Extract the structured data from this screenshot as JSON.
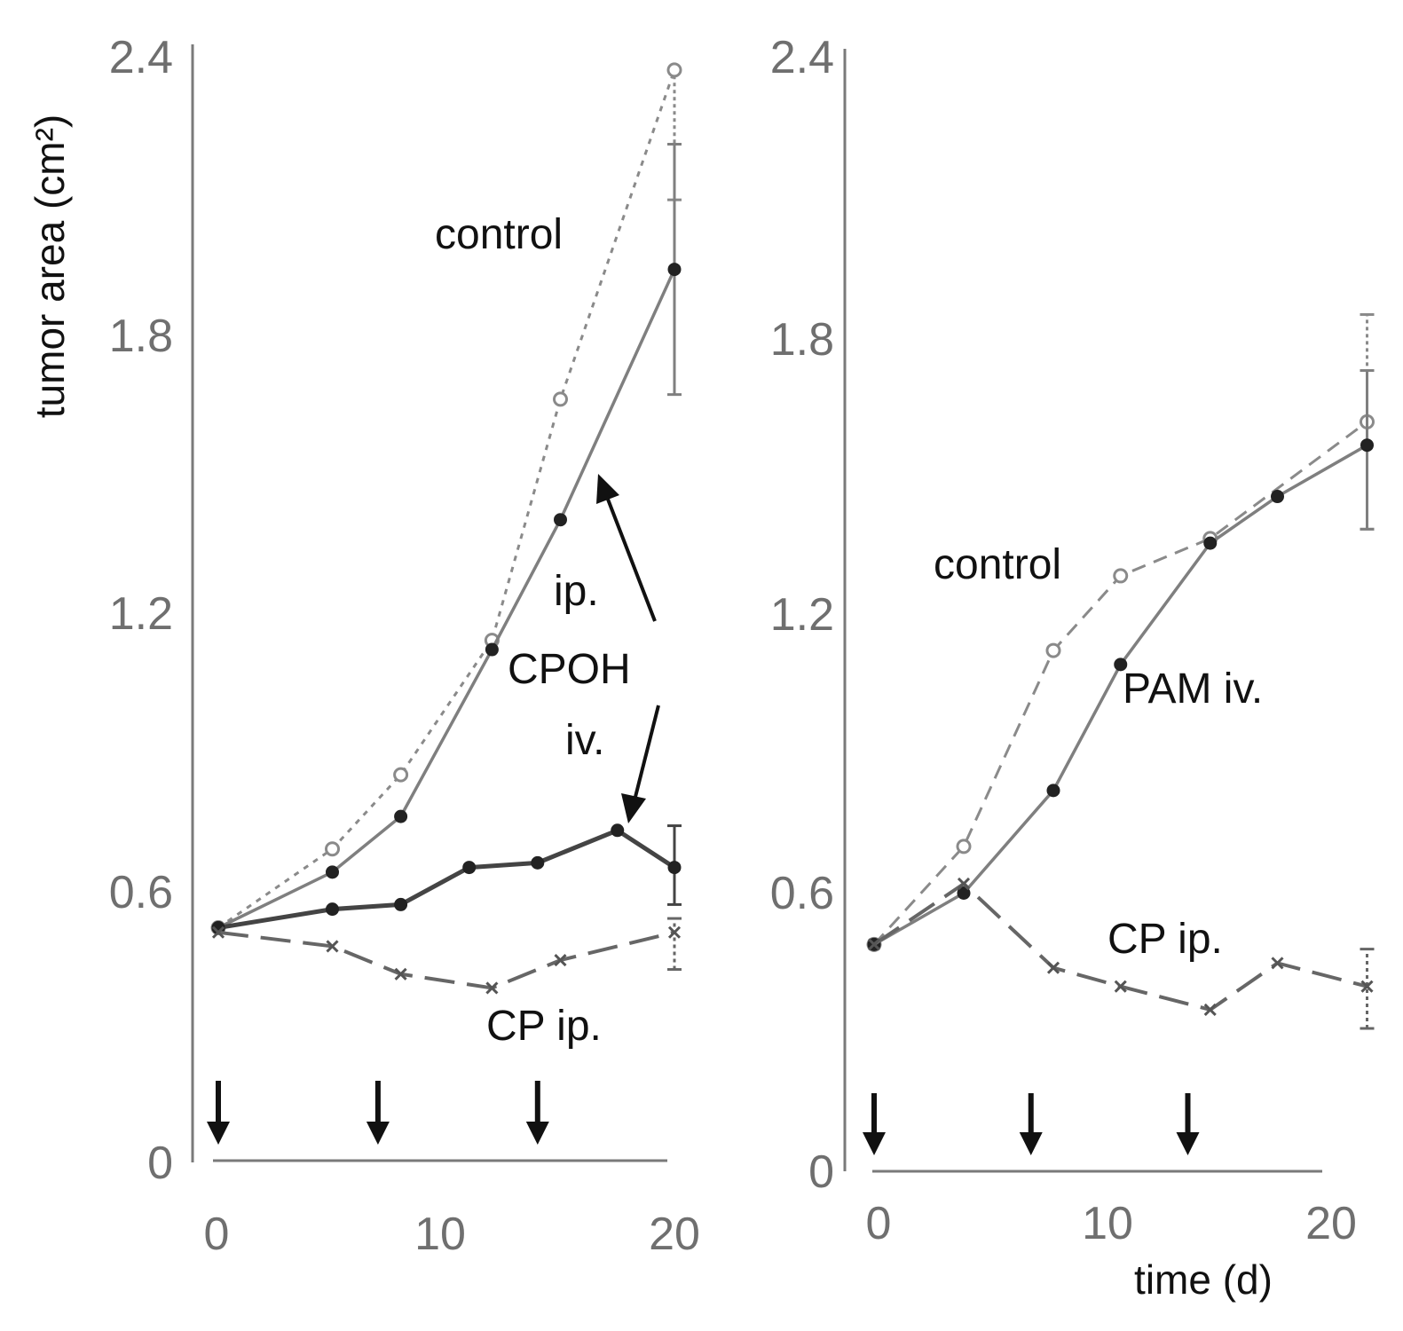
{
  "chart_data": [
    {
      "type": "line",
      "panel": "left",
      "ylabel": "tumor area (cm²)",
      "xlabel": "",
      "xlim": [
        0,
        20
      ],
      "ylim": [
        0,
        2.4
      ],
      "x_ticks": [
        "0",
        "10",
        "20"
      ],
      "y_ticks": [
        "0",
        "0.6",
        "1.2",
        "1.8",
        "2.4"
      ],
      "treatment_days": [
        0,
        7,
        14
      ],
      "series": [
        {
          "name": "control",
          "style": "dotted-open",
          "x": [
            0,
            5,
            8,
            12,
            15,
            20
          ],
          "y": [
            0.51,
            0.68,
            0.84,
            1.13,
            1.65,
            2.36
          ],
          "error": {
            "x": 20,
            "low": 2.08,
            "high": 2.36
          }
        },
        {
          "name": "CPOH ip.",
          "style": "solid-filled",
          "x": [
            0,
            5,
            8,
            12,
            15,
            20
          ],
          "y": [
            0.51,
            0.63,
            0.75,
            1.11,
            1.39,
            1.93
          ],
          "error": {
            "x": 20,
            "low": 1.66,
            "high": 2.2
          }
        },
        {
          "name": "CPOH iv.",
          "style": "solid-filled-bold",
          "x": [
            0,
            5,
            8,
            11,
            14,
            17.5,
            20
          ],
          "y": [
            0.51,
            0.55,
            0.56,
            0.64,
            0.65,
            0.72,
            0.64
          ],
          "error": {
            "x": 20,
            "low": 0.56,
            "high": 0.73
          }
        },
        {
          "name": "CP ip.",
          "style": "dashed-cross",
          "x": [
            0,
            5,
            8,
            12,
            15,
            20
          ],
          "y": [
            0.5,
            0.47,
            0.41,
            0.38,
            0.44,
            0.5
          ],
          "error": {
            "x": 20,
            "low": 0.42,
            "high": 0.53
          }
        }
      ],
      "annotations": [
        "control",
        "ip.",
        "CPOH",
        "iv.",
        "CP ip."
      ]
    },
    {
      "type": "line",
      "panel": "right",
      "ylabel": "",
      "xlabel": "time (d)",
      "xlim": [
        0,
        20
      ],
      "ylim": [
        0,
        2.4
      ],
      "x_ticks": [
        "0",
        "10",
        "20"
      ],
      "y_ticks": [
        "0",
        "0.6",
        "1.2",
        "1.8",
        "2.4"
      ],
      "treatment_days": [
        0,
        7,
        14
      ],
      "series": [
        {
          "name": "control",
          "style": "dashed-open",
          "x": [
            0,
            4,
            8,
            11,
            15,
            22
          ],
          "y": [
            0.49,
            0.7,
            1.12,
            1.28,
            1.36,
            1.61
          ],
          "error": {
            "x": 22,
            "low": 1.38,
            "high": 1.84
          }
        },
        {
          "name": "PAM iv.",
          "style": "solid-filled",
          "x": [
            0,
            4,
            8,
            11,
            15,
            18,
            22
          ],
          "y": [
            0.49,
            0.6,
            0.82,
            1.09,
            1.35,
            1.45,
            1.56
          ],
          "error": {
            "x": 22,
            "low": 1.38,
            "high": 1.72
          }
        },
        {
          "name": "CP ip.",
          "style": "dashed-cross",
          "x": [
            0,
            4,
            8,
            11,
            15,
            18,
            22
          ],
          "y": [
            0.49,
            0.62,
            0.44,
            0.4,
            0.35,
            0.45,
            0.4
          ],
          "error": {
            "x": 22,
            "low": 0.31,
            "high": 0.48
          }
        }
      ],
      "annotations": [
        "control",
        "PAM iv.",
        "CP ip."
      ]
    }
  ]
}
